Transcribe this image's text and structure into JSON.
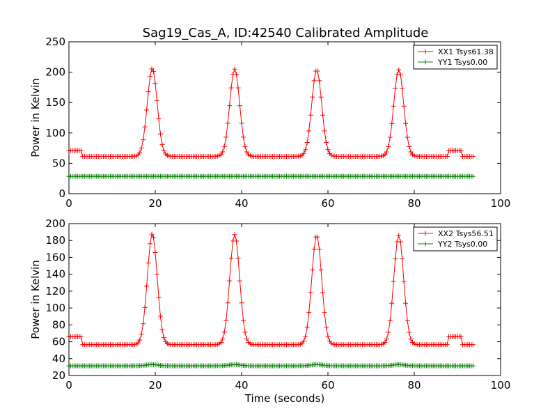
{
  "title": "Sag19_Cas_A, ID:42540 Calibrated Amplitude",
  "colors": {
    "xx": "#ff0000",
    "yy": "#008000"
  },
  "chart_data": [
    {
      "type": "line",
      "ylabel": "Power in Kelvin",
      "xlabel": "",
      "xlim": [
        0,
        100
      ],
      "ylim": [
        0,
        250
      ],
      "xticks": [
        0,
        20,
        40,
        60,
        80,
        100
      ],
      "yticks": [
        0,
        50,
        100,
        150,
        200,
        250
      ],
      "legend_position": "top-right",
      "series": [
        {
          "name": "XX1 Tsys61.38",
          "color": "#ff0000",
          "marker": "+",
          "baseline": 61.4,
          "calibration_level": 71,
          "calibration_windows": [
            [
              0,
              2.8
            ],
            [
              88.0,
              91.2
            ]
          ],
          "peaks": [
            {
              "center": 19.3,
              "peak": 206
            },
            {
              "center": 38.4,
              "peak": 205
            },
            {
              "center": 57.4,
              "peak": 204
            },
            {
              "center": 76.4,
              "peak": 204
            }
          ],
          "peak_sigma": 1.15,
          "x_range": [
            0,
            93.6
          ],
          "sample_step": 0.4
        },
        {
          "name": "YY1 Tsys0.00",
          "color": "#008000",
          "marker": "+",
          "baseline": 28.5,
          "x_range": [
            0,
            93.6
          ],
          "sample_step": 0.4
        }
      ]
    },
    {
      "type": "line",
      "ylabel": "Power in Kelvin",
      "xlabel": "Time (seconds)",
      "xlim": [
        0,
        100
      ],
      "ylim": [
        20,
        200
      ],
      "xticks": [
        0,
        20,
        40,
        60,
        80,
        100
      ],
      "yticks": [
        20,
        40,
        60,
        80,
        100,
        120,
        140,
        160,
        180,
        200
      ],
      "legend_position": "top-right",
      "series": [
        {
          "name": "XX2 Tsys56.51",
          "color": "#ff0000",
          "marker": "+",
          "baseline": 56.5,
          "calibration_level": 66,
          "calibration_windows": [
            [
              0,
              2.8
            ],
            [
              88.0,
              91.2
            ]
          ],
          "peaks": [
            {
              "center": 19.3,
              "peak": 188
            },
            {
              "center": 38.4,
              "peak": 187
            },
            {
              "center": 57.4,
              "peak": 186
            },
            {
              "center": 76.4,
              "peak": 186
            }
          ],
          "peak_sigma": 1.15,
          "x_range": [
            0,
            93.6
          ],
          "sample_step": 0.4
        },
        {
          "name": "YY2 Tsys0.00",
          "color": "#008000",
          "marker": "+",
          "baseline": 31.5,
          "peaks": [
            {
              "center": 19.3,
              "peak": 33
            },
            {
              "center": 38.4,
              "peak": 33
            },
            {
              "center": 57.4,
              "peak": 33
            },
            {
              "center": 76.4,
              "peak": 33
            }
          ],
          "peak_sigma": 1.3,
          "x_range": [
            0,
            93.6
          ],
          "sample_step": 0.4
        }
      ]
    }
  ]
}
